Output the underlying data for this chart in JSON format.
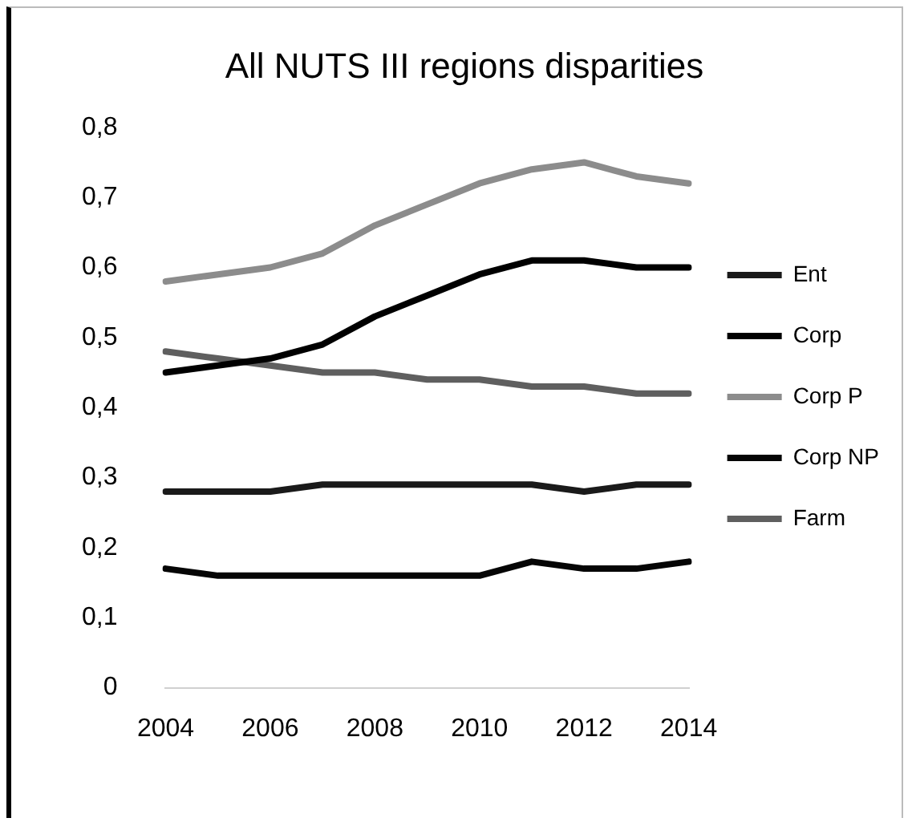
{
  "chart_data": {
    "type": "line",
    "title": "All NUTS III regions disparities",
    "categories": [
      "2004",
      null,
      "2006",
      null,
      "2008",
      null,
      "2010",
      null,
      "2012",
      null,
      "2014"
    ],
    "series": [
      {
        "name": "Ent",
        "color": "#1a1a1a",
        "values": [
          0.28,
          0.28,
          0.28,
          0.29,
          0.29,
          0.29,
          0.29,
          0.29,
          0.28,
          0.29,
          0.29
        ]
      },
      {
        "name": "Corp",
        "color": "#000000",
        "values": [
          0.45,
          0.46,
          0.47,
          0.49,
          0.53,
          0.56,
          0.59,
          0.61,
          0.61,
          0.6,
          0.6
        ]
      },
      {
        "name": "Corp P",
        "color": "#8c8c8c",
        "values": [
          0.58,
          0.59,
          0.6,
          0.62,
          0.66,
          0.69,
          0.72,
          0.74,
          0.75,
          0.73,
          0.72
        ]
      },
      {
        "name": "Corp NP",
        "color": "#050505",
        "values": [
          0.17,
          0.16,
          0.16,
          0.16,
          0.16,
          0.16,
          0.16,
          0.18,
          0.17,
          0.17,
          0.18
        ]
      },
      {
        "name": "Farm",
        "color": "#5f5f5f",
        "values": [
          0.48,
          0.47,
          0.46,
          0.45,
          0.45,
          0.44,
          0.44,
          0.43,
          0.43,
          0.42,
          0.42
        ]
      }
    ],
    "ylim": [
      0,
      0.8
    ],
    "yticks": [
      0,
      {
        "value": 0.1,
        "label": "0,1"
      },
      {
        "value": 0.2,
        "label": "0,2"
      },
      {
        "value": 0.3,
        "label": "0,3"
      },
      {
        "value": 0.4,
        "label": "0,4"
      },
      {
        "value": 0.5,
        "label": "0,5"
      },
      {
        "value": 0.6,
        "label": "0,6"
      },
      {
        "value": 0.7,
        "label": "0,7"
      },
      {
        "value": 0.8,
        "label": "0,8"
      }
    ],
    "grid": false,
    "legend": "right",
    "marker": "none",
    "line_style": "solid"
  }
}
